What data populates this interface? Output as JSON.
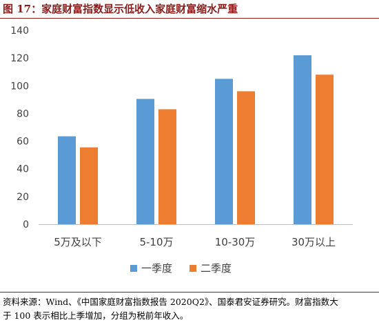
{
  "figure": {
    "title": "图 17：家庭财富指数显示低收入家庭财富缩水严重",
    "source_line1": "资料来源：Wind、《中国家庭财富指数报告 2020Q2》、国泰君安证券研究。财富指数大",
    "source_line2": "于 100 表示相比上季增加，分组为税前年收入。"
  },
  "chart_data": {
    "type": "bar",
    "title": "",
    "xlabel": "",
    "ylabel": "",
    "categories": [
      "5万及以下",
      "5-10万",
      "10-30万",
      "30万以上"
    ],
    "series": [
      {
        "name": "一季度",
        "color": "#5b9bd5",
        "values": [
          63.5,
          90.5,
          105,
          122
        ]
      },
      {
        "name": "二季度",
        "color": "#ed7d31",
        "values": [
          55.5,
          83,
          96,
          108
        ]
      }
    ],
    "ylim": [
      0,
      140
    ],
    "yticks": [
      0,
      20,
      40,
      60,
      80,
      100,
      120,
      140
    ],
    "grid": false,
    "legend_position": "bottom"
  }
}
